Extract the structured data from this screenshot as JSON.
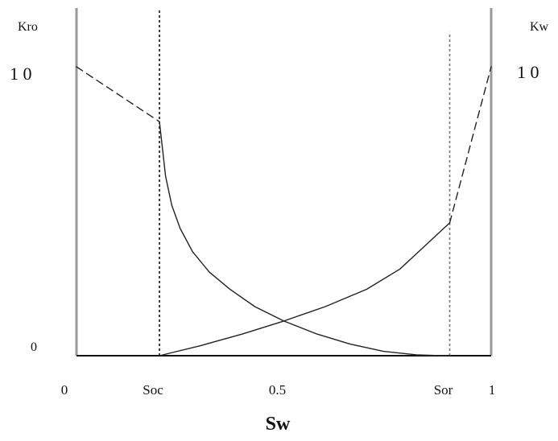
{
  "chart_data": {
    "type": "line",
    "title": "",
    "xlabel": "Sw",
    "ylabel_left": "Kro",
    "ylabel_right": "Kw",
    "xlim": [
      0,
      1
    ],
    "ylim": [
      0,
      1
    ],
    "grid": false,
    "x_tick_labels": [
      {
        "x": 0,
        "label": "0"
      },
      {
        "x": 0.2,
        "label": "Soc"
      },
      {
        "x": 0.5,
        "label": "0.5"
      },
      {
        "x": 0.9,
        "label": "Sor"
      },
      {
        "x": 1,
        "label": "1"
      }
    ],
    "y_tick_labels_left": [
      {
        "y": 0,
        "label": "0"
      },
      {
        "y": 1,
        "label": "1 0"
      }
    ],
    "y_tick_labels_right": [
      {
        "y": 1,
        "label": "1 0"
      }
    ],
    "series": [
      {
        "style": "dashed",
        "x": [
          0,
          0.2
        ],
        "y": [
          1.0,
          0.81
        ]
      },
      {
        "style": "solid",
        "x": [
          0.2,
          0.215,
          0.23,
          0.25,
          0.28,
          0.32,
          0.37,
          0.43,
          0.5,
          0.58,
          0.66,
          0.74,
          0.82,
          0.88,
          0.9
        ],
        "y": [
          0.81,
          0.62,
          0.52,
          0.44,
          0.36,
          0.29,
          0.23,
          0.17,
          0.12,
          0.075,
          0.04,
          0.015,
          0.003,
          0.0,
          0.0
        ]
      },
      {
        "style": "solid",
        "x": [
          0.2,
          0.3,
          0.4,
          0.5,
          0.6,
          0.7,
          0.78,
          0.84,
          0.9
        ],
        "y": [
          0.0,
          0.035,
          0.075,
          0.12,
          0.17,
          0.23,
          0.3,
          0.38,
          0.46
        ]
      },
      {
        "style": "dashed",
        "x": [
          0.9,
          1.0
        ],
        "y": [
          0.46,
          1.0
        ]
      }
    ],
    "vertical_lines": [
      {
        "x": 0.2,
        "style": "dotted",
        "color": "#111111",
        "top": 1.2
      },
      {
        "x": 0.9,
        "style": "dotted",
        "color": "#777777",
        "top": 1.12
      }
    ],
    "axes_color": "#999999",
    "baseline_color": "#111111",
    "curve_color": "#222222"
  }
}
